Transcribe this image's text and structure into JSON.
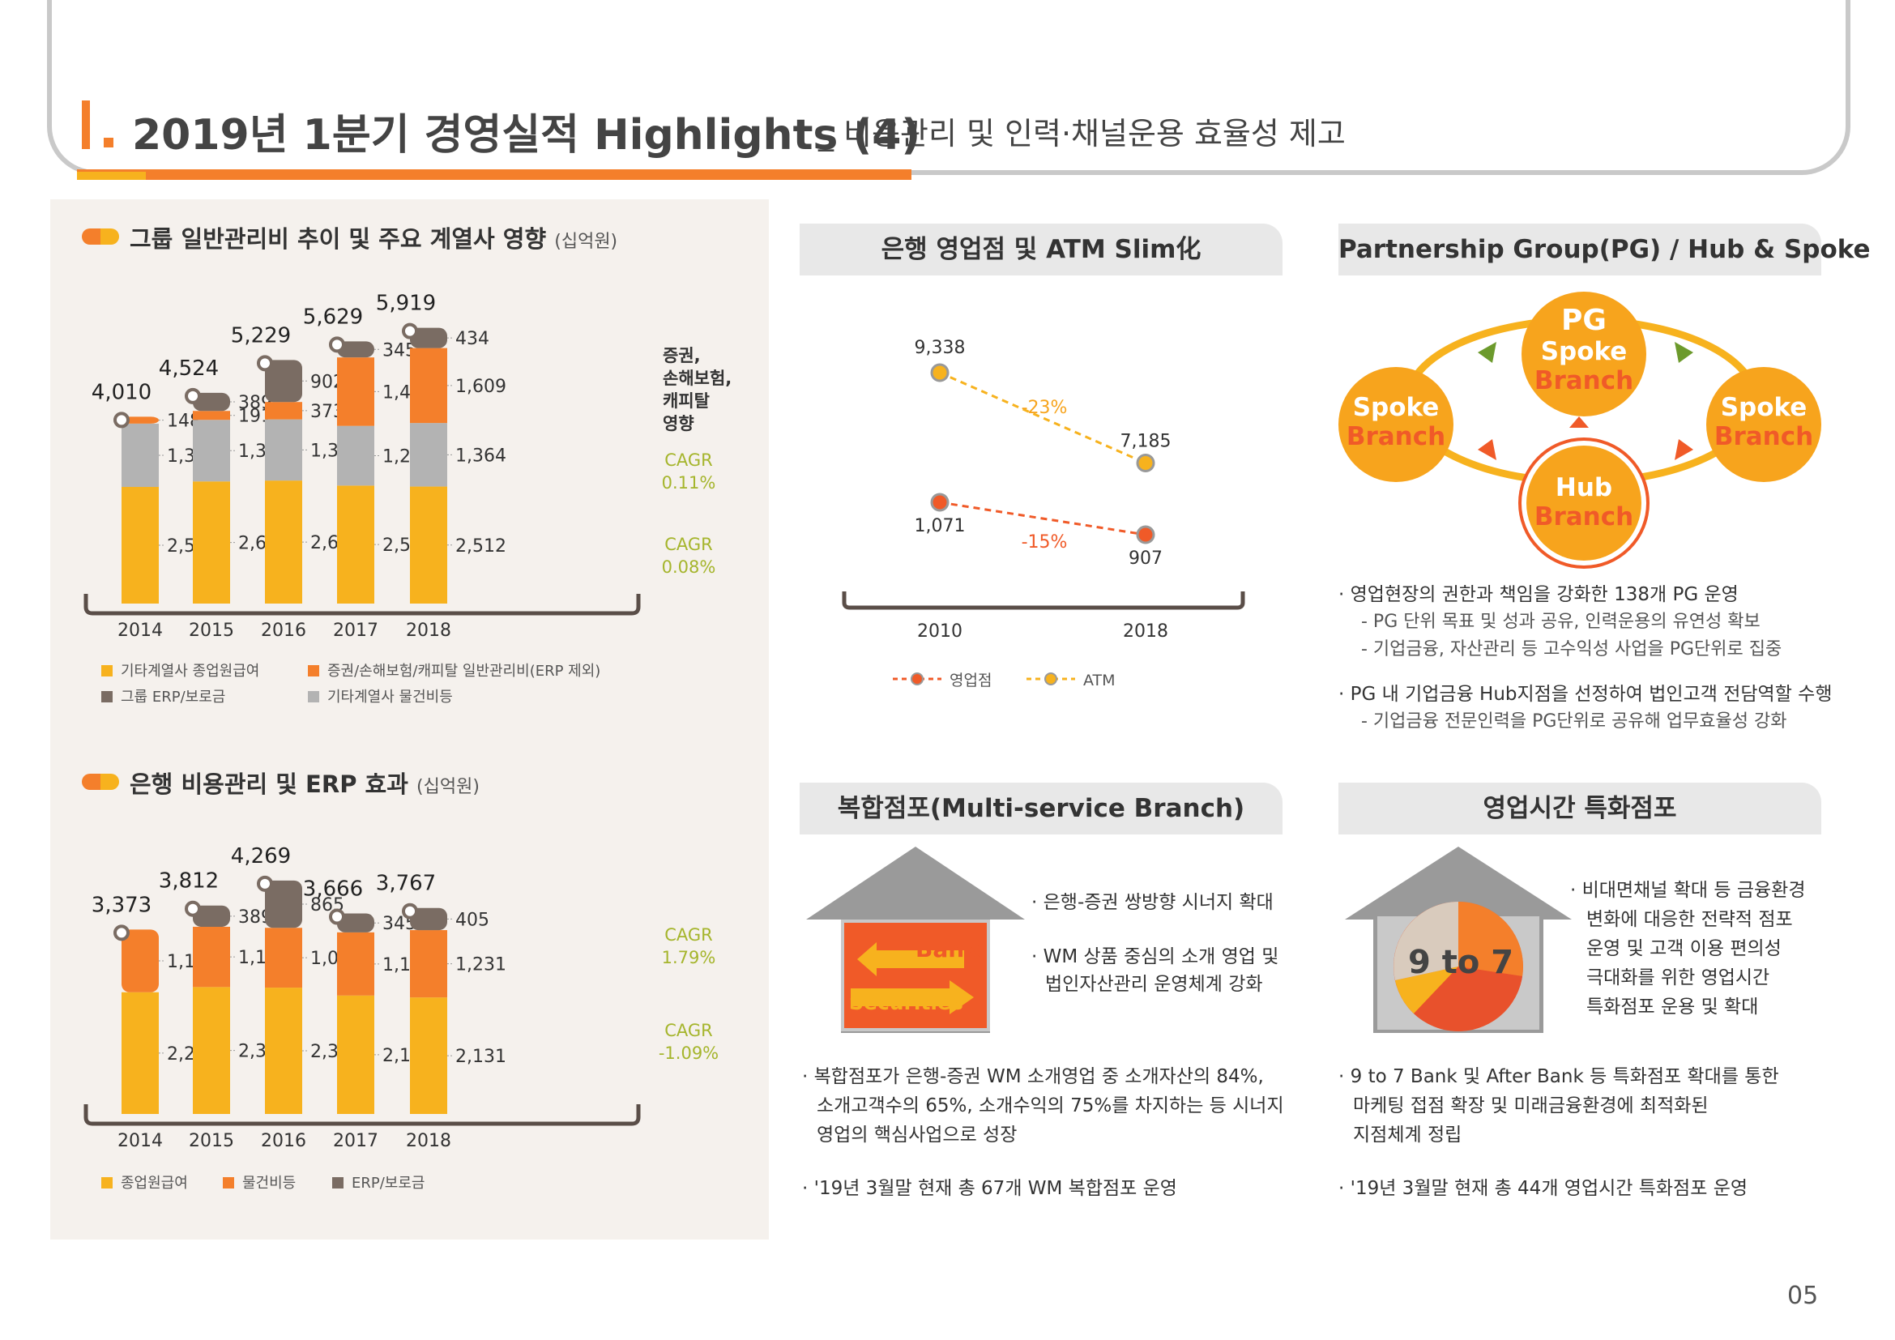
{
  "header": {
    "title": "2019년 1분기 경영실적 Highlights (4)",
    "subtitle": "_ 비용관리 및 인력·채널운용 효율성 제고"
  },
  "left_section_1": {
    "title": "그룹 일반관리비 추이 및 주요 계열사 영향",
    "unit": "(십억원)",
    "bracket_note": [
      "증권,",
      "손해보험,",
      "캐피탈",
      "영향"
    ],
    "cagr_top": [
      "CAGR",
      "0.11%"
    ],
    "cagr_bottom": [
      "CAGR",
      "0.08%"
    ],
    "legend": [
      "기타계열사 종업원급여",
      "증권/손해보험/캐피탈 일반관리비(ERP 제외)",
      "그룹 ERP/보로금",
      "기타계열사 물건비등"
    ]
  },
  "left_section_2": {
    "title": "은행 비용관리 및 ERP 효과",
    "unit": "(십억원)",
    "cagr_top": [
      "CAGR",
      "1.79%"
    ],
    "cagr_bottom": [
      "CAGR",
      "-1.09%"
    ],
    "legend": [
      "종업원급여",
      "물건비등",
      "ERP/보로금"
    ]
  },
  "chart_data": [
    {
      "type": "bar",
      "stacked": true,
      "title": "그룹 일반관리비 추이 및 주요 계열사 영향",
      "categories": [
        "2014",
        "2015",
        "2016",
        "2017",
        "2018"
      ],
      "totals": [
        4010,
        4524,
        5229,
        5629,
        5919
      ],
      "series": [
        {
          "name": "기타계열사 종업원급여",
          "color": "#f7b21e",
          "values": [
            2504,
            2622,
            2641,
            2533,
            2512
          ]
        },
        {
          "name": "기타계열사 물건비등",
          "color": "#b3b3b3",
          "values": [
            1358,
            1322,
            1313,
            1281,
            1364
          ]
        },
        {
          "name": "증권/손해보험/캐피탈 일반관리비(ERP 제외)",
          "color": "#f47f2b",
          "values": [
            148,
            191,
            373,
            1470,
            1609
          ]
        },
        {
          "name": "그룹 ERP/보로금",
          "color": "#7a6c63",
          "values": [
            0,
            389,
            902,
            345,
            434
          ]
        }
      ]
    },
    {
      "type": "bar",
      "stacked": true,
      "title": "은행 비용관리 및 ERP 효과",
      "categories": [
        "2014",
        "2015",
        "2016",
        "2017",
        "2018"
      ],
      "totals": [
        3373,
        3812,
        4269,
        3666,
        3767
      ],
      "series": [
        {
          "name": "종업원급여",
          "color": "#f7b21e",
          "values": [
            2226,
            2321,
            2310,
            2166,
            2131
          ]
        },
        {
          "name": "물건비등",
          "color": "#f47f2b",
          "values": [
            1147,
            1102,
            1094,
            1155,
            1231
          ]
        },
        {
          "name": "ERP/보로금",
          "color": "#7a6c63",
          "values": [
            0,
            389,
            865,
            345,
            405
          ]
        }
      ]
    },
    {
      "type": "line",
      "title": "은행 영업점 및 ATM Slim化",
      "x": [
        "2010",
        "2018"
      ],
      "series": [
        {
          "name": "ATM",
          "color": "#f7b21e",
          "values": [
            9338,
            7185
          ],
          "change": "-23%"
        },
        {
          "name": "영업점",
          "color": "#f05a28",
          "values": [
            1071,
            907
          ],
          "change": "-15%"
        }
      ]
    }
  ],
  "bank_branch": {
    "title": "은행 영업점 및 ATM Slim化",
    "legend": [
      "영업점",
      "ATM"
    ]
  },
  "pg": {
    "title": "Partnership Group(PG) / Hub & Spoke",
    "pg_circle": [
      "PG",
      "Spoke",
      "Branch"
    ],
    "left_circle": [
      "Spoke",
      "Branch"
    ],
    "right_circle": [
      "Spoke",
      "Branch"
    ],
    "hub_circle": [
      "Hub",
      "Branch"
    ],
    "bullets": [
      {
        "text": "· 영업현장의 권한과 책임을 강화한 138개 PG 운영",
        "subs": [
          "- PG 단위 목표 및 성과 공유, 인력운용의 유연성 확보",
          "- 기업금융, 자산관리 등 고수익성 사업을 PG단위로 집중"
        ]
      },
      {
        "text": "· PG 내 기업금융 Hub지점을 선정하여 법인고객 전담역할 수행",
        "subs": [
          "- 기업금융 전문인력을 PG단위로 공유해 업무효율성 강화"
        ]
      }
    ]
  },
  "multi": {
    "title": "복합점포(Multi-service Branch)",
    "house_bank": "Bank",
    "house_sec": "Securities",
    "side": [
      "· 은행-증권 쌍방향 시너지 확대",
      "· WM 상품 중심의 소개 영업 및",
      "법인자산관리 운영체계 강화"
    ],
    "bullets": [
      "· 복합점포가 은행-증권 WM 소개영업 중 소개자산의 84%,",
      "소개고객수의 65%, 소개수익의 75%를 차지하는 등 시너지",
      "영업의 핵심사업으로 성장",
      "· '19년 3월말 현재 총 67개 WM 복합점포 운영"
    ]
  },
  "hours": {
    "title": "영업시간 특화점포",
    "pie_label": "9 to 7",
    "side": [
      "· 비대면채널 확대 등 금융환경",
      "변화에 대응한 전략적 점포",
      "운영 및 고객 이용 편의성",
      "극대화를 위한 영업시간",
      "특화점포 운용 및 확대"
    ],
    "bullets": [
      "· 9 to 7 Bank 및 After Bank 등 특화점포 확대를 통한",
      "마케팅 접점 확장 및 미래금융환경에 최적화된",
      "지점체계 정립",
      "· '19년 3월말 현재 총 44개 영업시간 특화점포 운영"
    ]
  },
  "page_number": "05"
}
